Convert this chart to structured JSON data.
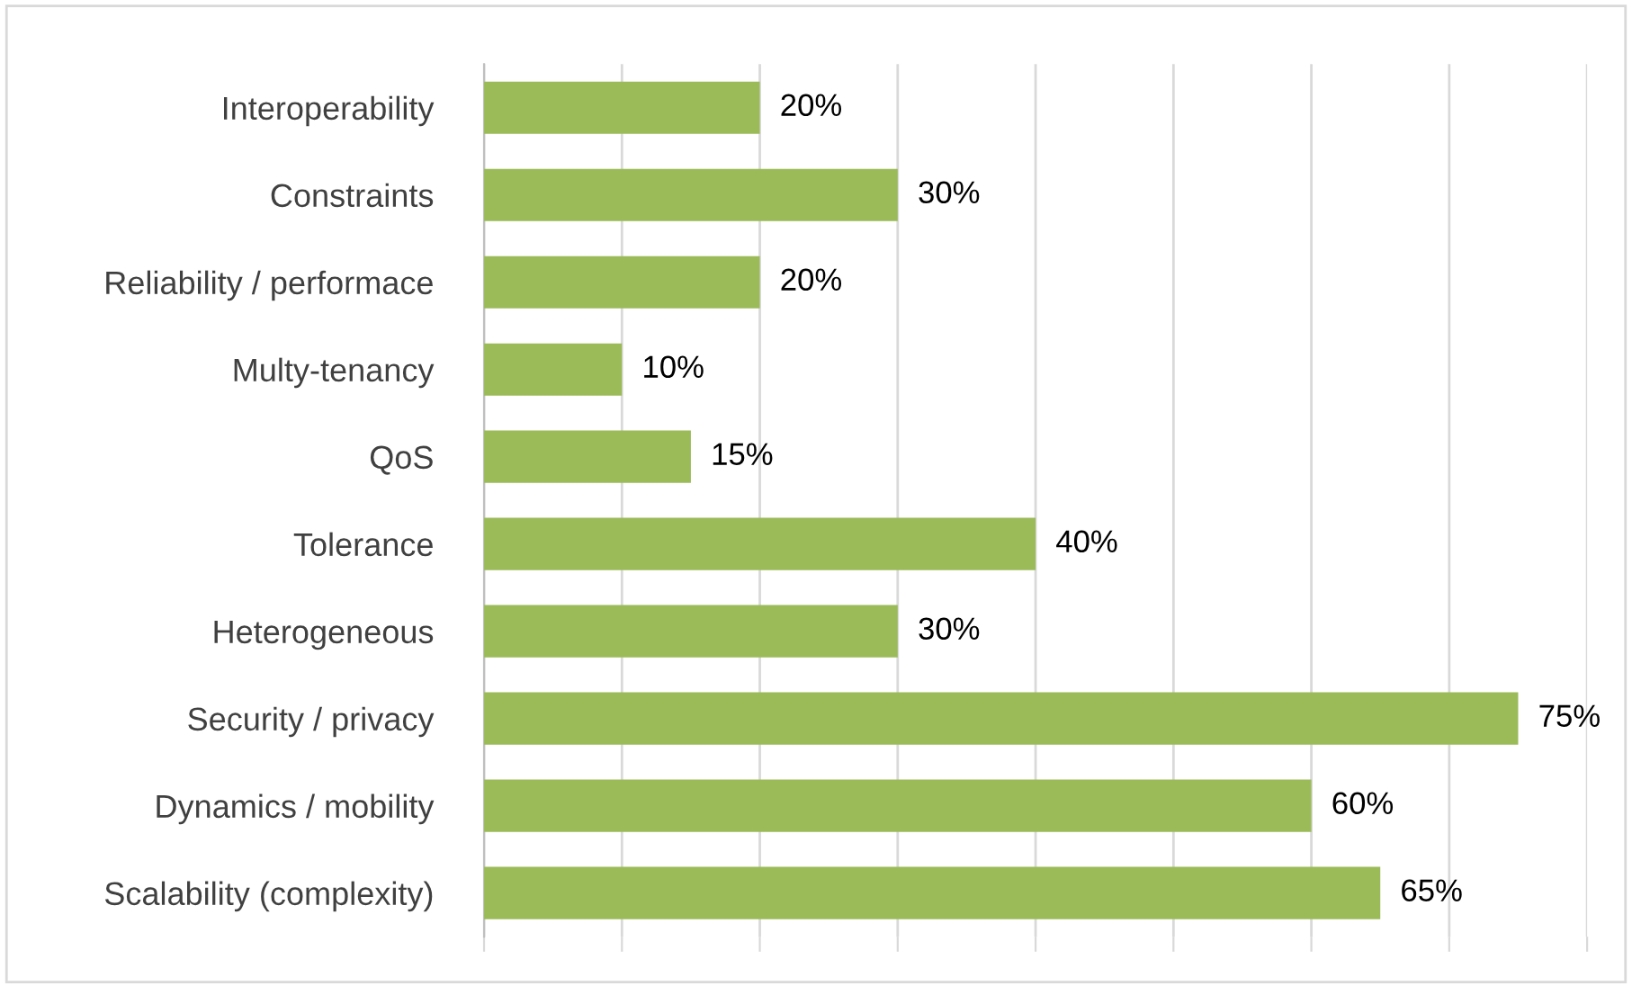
{
  "chart_data": {
    "type": "bar",
    "orientation": "horizontal",
    "categories": [
      "Interoperability",
      "Constraints",
      "Reliability / performace",
      "Multy-tenancy",
      "QoS",
      "Tolerance",
      "Heterogeneous",
      "Security / privacy",
      "Dynamics / mobility",
      "Scalability (complexity)"
    ],
    "values": [
      20,
      30,
      20,
      10,
      15,
      40,
      30,
      75,
      60,
      65
    ],
    "value_labels": [
      "20%",
      "30%",
      "20%",
      "10%",
      "15%",
      "40%",
      "30%",
      "75%",
      "60%",
      "65%"
    ],
    "color": "#9bbb59",
    "xlim": [
      0,
      80
    ],
    "xticks": [
      {
        "value": 0,
        "label": null
      },
      {
        "value": 10,
        "label": null
      },
      {
        "value": 20,
        "label": null
      },
      {
        "value": 30,
        "label": null
      },
      {
        "value": 40,
        "label": null
      },
      {
        "value": 50,
        "label": null
      },
      {
        "value": 60,
        "label": null
      },
      {
        "value": 70,
        "label": null
      },
      {
        "value": 80,
        "label": null
      }
    ],
    "tick_labels": "y",
    "grid": "x",
    "legend": false
  }
}
